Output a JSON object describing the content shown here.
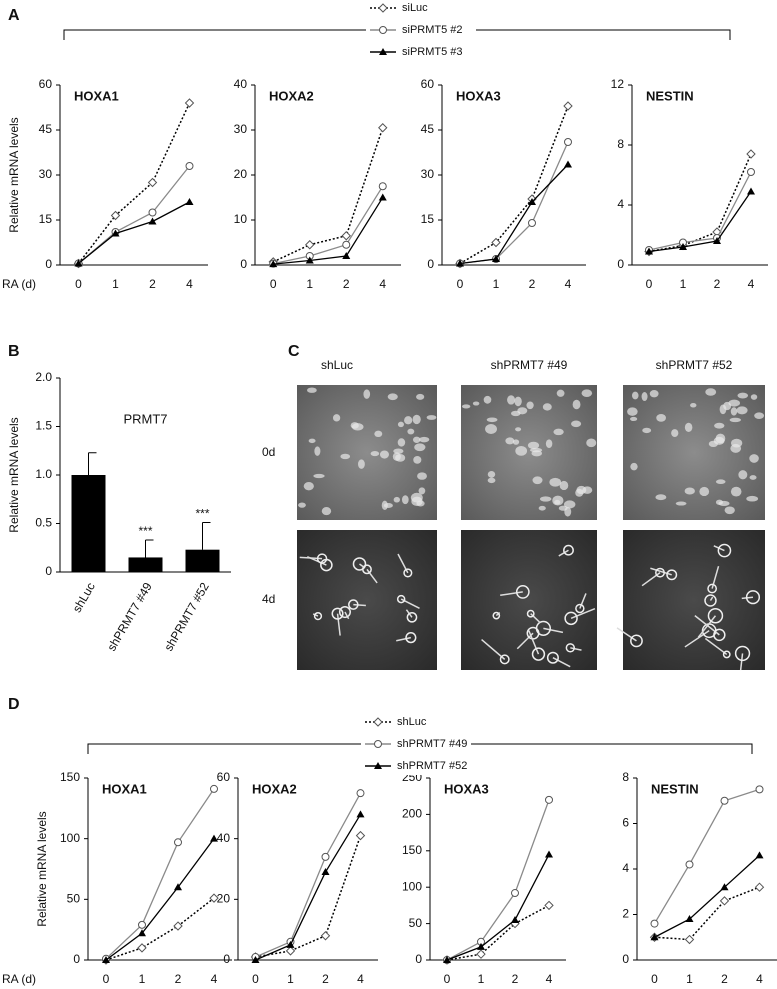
{
  "panel_labels": [
    "A",
    "B",
    "C",
    "D"
  ],
  "images": {
    "columns": [
      "shLuc",
      "shPRMT7 #49",
      "shPRMT7 #52"
    ],
    "rows": [
      "0d",
      "4d"
    ]
  },
  "chart_data": [
    {
      "type": "line",
      "title": "HOXA1",
      "xlabel": "RA (d)",
      "ylabel": "Relative mRNA levels",
      "categories": [
        "0",
        "1",
        "2",
        "4"
      ],
      "ylim": [
        0,
        60
      ],
      "yticks": [
        0,
        15,
        30,
        45,
        60
      ],
      "series": [
        {
          "name": "siLuc",
          "color": "#000000",
          "dash": true,
          "marker": "diamond",
          "values": [
            0.5,
            16.5,
            27.5,
            54
          ]
        },
        {
          "name": "siPRMT5 #2",
          "color": "#8a8a8a",
          "dash": false,
          "marker": "circle",
          "values": [
            0.5,
            11,
            17.5,
            33
          ]
        },
        {
          "name": "siPRMT5 #3",
          "color": "#000000",
          "dash": false,
          "marker": "triangle",
          "values": [
            0.5,
            10.5,
            14.5,
            21
          ]
        }
      ]
    },
    {
      "type": "line",
      "title": "HOXA2",
      "categories": [
        "0",
        "1",
        "2",
        "4"
      ],
      "ylim": [
        0,
        40
      ],
      "yticks": [
        0,
        10,
        20,
        30,
        40
      ],
      "series": [
        {
          "name": "siLuc",
          "color": "#000000",
          "dash": true,
          "marker": "diamond",
          "values": [
            0.7,
            4.5,
            6.5,
            30.5
          ]
        },
        {
          "name": "siPRMT5 #2",
          "color": "#8a8a8a",
          "dash": false,
          "marker": "circle",
          "values": [
            0.3,
            2,
            4.5,
            17.5
          ]
        },
        {
          "name": "siPRMT5 #3",
          "color": "#000000",
          "dash": false,
          "marker": "triangle",
          "values": [
            0.2,
            1,
            2,
            15
          ]
        }
      ]
    },
    {
      "type": "line",
      "title": "HOXA3",
      "categories": [
        "0",
        "1",
        "2",
        "4"
      ],
      "ylim": [
        0,
        60
      ],
      "yticks": [
        0,
        15,
        30,
        45,
        60
      ],
      "series": [
        {
          "name": "siLuc",
          "color": "#000000",
          "dash": true,
          "marker": "diamond",
          "values": [
            0.5,
            7.5,
            22,
            53
          ]
        },
        {
          "name": "siPRMT5 #2",
          "color": "#8a8a8a",
          "dash": false,
          "marker": "circle",
          "values": [
            0.5,
            2,
            14,
            41
          ]
        },
        {
          "name": "siPRMT5 #3",
          "color": "#000000",
          "dash": false,
          "marker": "triangle",
          "values": [
            0.5,
            2,
            21,
            33.5
          ]
        }
      ]
    },
    {
      "type": "line",
      "title": "NESTIN",
      "categories": [
        "0",
        "1",
        "2",
        "4"
      ],
      "ylim": [
        0,
        12
      ],
      "yticks": [
        0,
        4,
        8,
        12
      ],
      "series": [
        {
          "name": "siLuc",
          "color": "#000000",
          "dash": true,
          "marker": "diamond",
          "values": [
            0.9,
            1.3,
            2.2,
            7.4
          ]
        },
        {
          "name": "siPRMT5 #2",
          "color": "#8a8a8a",
          "dash": false,
          "marker": "circle",
          "values": [
            1,
            1.5,
            1.8,
            6.2
          ]
        },
        {
          "name": "siPRMT5 #3",
          "color": "#000000",
          "dash": false,
          "marker": "triangle",
          "values": [
            0.9,
            1.2,
            1.6,
            4.9
          ]
        }
      ]
    },
    {
      "type": "bar",
      "title": "PRMT7",
      "ylabel": "Relative mRNA levels",
      "categories": [
        "shLuc",
        "shPRMT7 #49",
        "shPRMT7 #52"
      ],
      "values": [
        1.0,
        0.15,
        0.23
      ],
      "errors": [
        0.23,
        0.18,
        0.28
      ],
      "color": "#000000",
      "annotations": [
        {
          "category": "shPRMT7 #49",
          "text": "***"
        },
        {
          "category": "shPRMT7 #52",
          "text": "***"
        }
      ],
      "ylim": [
        0,
        2
      ],
      "yticks": [
        0,
        0.5,
        {
          "value": 1,
          "label": "1.0"
        },
        1.5,
        {
          "value": 2,
          "label": "2.0"
        }
      ]
    },
    {
      "type": "line",
      "title": "HOXA1",
      "xlabel": "RA (d)",
      "ylabel": "Relative mRNA levels",
      "categories": [
        "0",
        "1",
        "2",
        "4"
      ],
      "ylim": [
        0,
        150
      ],
      "yticks": [
        0,
        50,
        100,
        150
      ],
      "series": [
        {
          "name": "shLuc",
          "color": "#000000",
          "dash": true,
          "marker": "diamond",
          "values": [
            0,
            10,
            28,
            51
          ]
        },
        {
          "name": "shPRMT7 #49",
          "color": "#8a8a8a",
          "dash": false,
          "marker": "circle",
          "values": [
            1,
            29,
            97,
            141
          ]
        },
        {
          "name": "shPRMT7 #52",
          "color": "#000000",
          "dash": false,
          "marker": "triangle",
          "values": [
            0,
            22,
            60,
            100
          ]
        }
      ]
    },
    {
      "type": "line",
      "title": "HOXA2",
      "categories": [
        "0",
        "1",
        "2",
        "4"
      ],
      "ylim": [
        0,
        60
      ],
      "yticks": [
        0,
        20,
        40,
        60
      ],
      "series": [
        {
          "name": "shLuc",
          "color": "#000000",
          "dash": true,
          "marker": "diamond",
          "values": [
            1,
            3,
            8,
            41
          ]
        },
        {
          "name": "shPRMT7 #49",
          "color": "#8a8a8a",
          "dash": false,
          "marker": "circle",
          "values": [
            1,
            6,
            34,
            55
          ]
        },
        {
          "name": "shPRMT7 #52",
          "color": "#000000",
          "dash": false,
          "marker": "triangle",
          "values": [
            0,
            5,
            29,
            48
          ]
        }
      ]
    },
    {
      "type": "line",
      "title": "HOXA3",
      "categories": [
        "0",
        "1",
        "2",
        "4"
      ],
      "ylim": [
        0,
        250
      ],
      "yticks": [
        0,
        50,
        100,
        150,
        200,
        250
      ],
      "series": [
        {
          "name": "shLuc",
          "color": "#000000",
          "dash": true,
          "marker": "diamond",
          "values": [
            0,
            8,
            50,
            75
          ]
        },
        {
          "name": "shPRMT7 #49",
          "color": "#8a8a8a",
          "dash": false,
          "marker": "circle",
          "values": [
            0,
            25,
            92,
            220
          ]
        },
        {
          "name": "shPRMT7 #52",
          "color": "#000000",
          "dash": false,
          "marker": "triangle",
          "values": [
            0,
            18,
            55,
            145
          ]
        }
      ]
    },
    {
      "type": "line",
      "title": "NESTIN",
      "categories": [
        "0",
        "1",
        "2",
        "4"
      ],
      "ylim": [
        0,
        8
      ],
      "yticks": [
        0,
        2,
        4,
        6,
        8
      ],
      "series": [
        {
          "name": "shLuc",
          "color": "#000000",
          "dash": true,
          "marker": "diamond",
          "values": [
            1,
            0.9,
            2.6,
            3.2
          ]
        },
        {
          "name": "shPRMT7 #49",
          "color": "#8a8a8a",
          "dash": false,
          "marker": "circle",
          "values": [
            1.6,
            4.2,
            7,
            7.5
          ]
        },
        {
          "name": "shPRMT7 #52",
          "color": "#000000",
          "dash": false,
          "marker": "triangle",
          "values": [
            1,
            1.8,
            3.2,
            4.6
          ]
        }
      ]
    }
  ]
}
